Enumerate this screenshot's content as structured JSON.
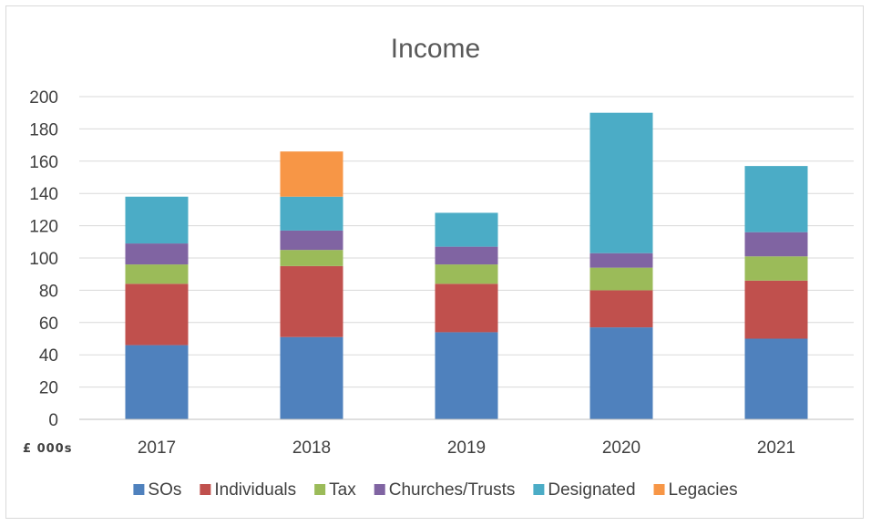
{
  "chart_data": {
    "type": "bar",
    "stacked": true,
    "title": "Income",
    "unit_label": "£ 000s",
    "categories": [
      "2017",
      "2018",
      "2019",
      "2020",
      "2021"
    ],
    "series": [
      {
        "name": "SOs",
        "color": "#4F81BD",
        "values": [
          46,
          51,
          54,
          57,
          50
        ]
      },
      {
        "name": "Individuals",
        "color": "#C0504D",
        "values": [
          38,
          44,
          30,
          23,
          36
        ]
      },
      {
        "name": "Tax",
        "color": "#9BBB59",
        "values": [
          12,
          10,
          12,
          14,
          15
        ]
      },
      {
        "name": "Churches/Trusts",
        "color": "#8064A2",
        "values": [
          13,
          12,
          11,
          9,
          15
        ]
      },
      {
        "name": "Designated",
        "color": "#4BACC6",
        "values": [
          29,
          21,
          21,
          87,
          41
        ]
      },
      {
        "name": "Legacies",
        "color": "#F79646",
        "values": [
          0,
          28,
          0,
          0,
          0
        ]
      }
    ],
    "ylim": [
      0,
      200
    ],
    "yticks": [
      0,
      20,
      40,
      60,
      80,
      100,
      120,
      140,
      160,
      180,
      200
    ],
    "grid": true,
    "legend_position": "bottom"
  }
}
